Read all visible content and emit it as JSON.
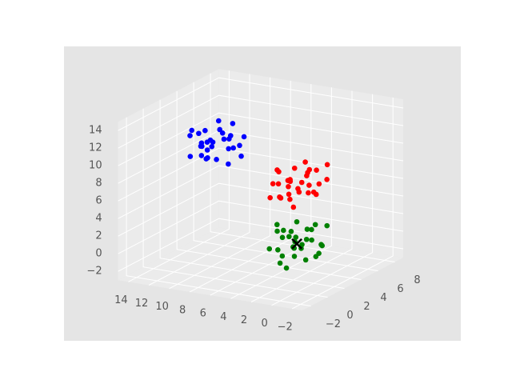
{
  "chart_data": {
    "type": "scatter3d",
    "xlim": [
      -3,
      15
    ],
    "ylim": [
      -3,
      9
    ],
    "zlim": [
      -3,
      15
    ],
    "xticks": [
      {
        "value": -2,
        "label": "−2"
      },
      0,
      2,
      4,
      6,
      8,
      10,
      12,
      14
    ],
    "yticks": [
      {
        "value": -2,
        "label": "−2"
      },
      0,
      2,
      4,
      6,
      8
    ],
    "zticks": [
      {
        "value": -2,
        "label": "−2"
      },
      0,
      2,
      4,
      6,
      8,
      10,
      12,
      14
    ],
    "grid": true,
    "series": [
      {
        "color": "#0000ff",
        "marker": "o",
        "x": [
          12.5,
          10.9,
          13.6,
          11.7,
          12.9,
          10.2,
          12.2,
          13.2,
          11.4,
          14.1,
          10.6,
          12.0,
          12.7,
          9.7,
          13.0,
          11.1,
          12.4,
          13.8,
          10.8,
          12.3,
          11.6,
          13.5,
          10.4,
          12.8,
          11.9,
          14.4,
          10.0,
          12.6,
          11.3,
          13.3
        ],
        "y": [
          3.8,
          5.4,
          5.9,
          6.7,
          4.8,
          4.3,
          5.3,
          3.4,
          3.6,
          5.5,
          6.1,
          4.5,
          6.3,
          5.2,
          7.0,
          2.9,
          5.8,
          4.1,
          5.0,
          4.2,
          6.5,
          5.1,
          4.0,
          5.6,
          3.2,
          6.2,
          5.9,
          4.7,
          5.7,
          3.7
        ],
        "z": [
          9.3,
          10.0,
          8.5,
          7.8,
          10.5,
          9.2,
          7.1,
          8.2,
          10.3,
          9.6,
          8.6,
          9.0,
          9.9,
          8.0,
          9.1,
          8.7,
          11.2,
          10.1,
          7.0,
          7.7,
          10.7,
          7.4,
          10.4,
          8.8,
          9.7,
          8.1,
          9.8,
          8.4,
          9.4,
          11.0
        ]
      },
      {
        "color": "#ff0000",
        "marker": "o",
        "x": [
          4.3,
          5.0,
          3.5,
          2.8,
          5.5,
          4.2,
          2.1,
          3.2,
          5.3,
          4.6,
          3.6,
          4.0,
          4.9,
          3.0,
          4.1,
          3.7,
          6.2,
          5.1,
          2.0,
          2.7,
          5.7,
          2.4,
          5.4,
          3.8,
          4.7,
          3.1,
          4.8,
          3.4,
          4.4,
          6.0
        ],
        "y": [
          5.5,
          3.9,
          6.6,
          4.7,
          5.9,
          3.2,
          5.2,
          6.2,
          4.4,
          7.1,
          3.6,
          5.0,
          5.7,
          2.7,
          6.0,
          4.1,
          5.4,
          6.8,
          3.8,
          5.3,
          4.6,
          6.5,
          3.4,
          5.8,
          4.9,
          7.4,
          3.0,
          5.6,
          4.3,
          6.3
        ],
        "z": [
          4.8,
          6.4,
          6.9,
          7.7,
          5.8,
          5.3,
          6.3,
          4.4,
          4.6,
          6.5,
          7.1,
          5.5,
          7.3,
          6.2,
          8.0,
          3.9,
          6.8,
          5.1,
          6.0,
          5.2,
          7.5,
          6.1,
          5.0,
          6.6,
          4.2,
          7.2,
          6.9,
          5.7,
          6.7,
          4.7
        ]
      },
      {
        "color": "#008000",
        "marker": "o",
        "x": [
          -1.2,
          0.4,
          0.9,
          1.7,
          -0.2,
          -0.7,
          0.3,
          -1.6,
          -1.4,
          0.5,
          1.1,
          -0.5,
          1.3,
          0.2,
          2.0,
          -2.1,
          0.8,
          -0.9,
          0.0,
          -0.8,
          1.5,
          0.1,
          -1.0,
          0.6,
          -1.8,
          1.2,
          0.9,
          -0.3,
          0.7,
          -1.3
        ],
        "y": [
          0.3,
          1.0,
          -0.5,
          -1.2,
          1.5,
          0.2,
          -1.9,
          -0.8,
          1.3,
          0.6,
          -0.4,
          0.0,
          0.9,
          -1.0,
          0.1,
          -0.3,
          2.2,
          1.1,
          -2.0,
          -1.3,
          1.7,
          -1.6,
          1.4,
          -0.2,
          0.7,
          -0.9,
          0.8,
          -0.6,
          0.4,
          2.0
        ],
        "z": [
          3.0,
          1.4,
          4.1,
          2.2,
          3.4,
          0.7,
          2.7,
          3.7,
          1.9,
          4.6,
          1.1,
          2.5,
          3.2,
          0.2,
          3.5,
          1.6,
          2.9,
          4.3,
          1.3,
          2.8,
          2.1,
          4.0,
          0.9,
          3.3,
          2.4,
          4.9,
          0.5,
          3.1,
          1.8,
          3.8
        ]
      },
      {
        "color": "#000000",
        "marker": "x",
        "x": [
          0.0
        ],
        "y": [
          0.0
        ],
        "z": [
          2.5
        ]
      }
    ]
  }
}
